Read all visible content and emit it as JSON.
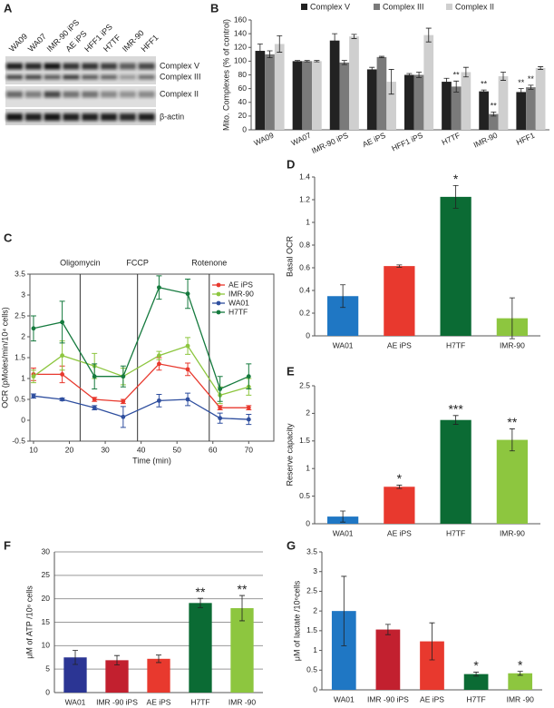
{
  "blot": {
    "panel": "A",
    "lanes": [
      "WA09",
      "WA07",
      "IMR-90 iPS",
      "AE iPS",
      "HFF1 iPS",
      "H7TF",
      "IMR-90",
      "HFF1"
    ],
    "bands": [
      "Complex V",
      "Complex III",
      "Complex II",
      "β-actin"
    ]
  },
  "chart_data": [
    {
      "type": "bar",
      "panel": "B",
      "ylabel": "Mito. Complexes (% of control)",
      "categories": [
        "WA09",
        "WA07",
        "IMR-90 iPS",
        "AE iPS",
        "HFF1 iPS",
        "H7TF",
        "IMR-90",
        "HFF1"
      ],
      "series": [
        {
          "name": "Complex V",
          "color": "#222222",
          "values": [
            115,
            100,
            130,
            88,
            80,
            70,
            56,
            55
          ],
          "errors": [
            10,
            1,
            10,
            3,
            2,
            5,
            2,
            5
          ],
          "significance": [
            null,
            null,
            null,
            null,
            null,
            null,
            "**",
            "**"
          ]
        },
        {
          "name": "Complex III",
          "color": "#7a7a7a",
          "values": [
            110,
            100,
            98,
            106,
            80,
            63,
            23,
            62
          ],
          "errors": [
            5,
            1,
            3,
            1,
            4,
            8,
            3,
            3
          ],
          "significance": [
            null,
            null,
            null,
            null,
            null,
            "**",
            "**",
            "**"
          ]
        },
        {
          "name": "Complex II",
          "color": "#cfcfcf",
          "values": [
            125,
            100,
            136,
            70,
            138,
            84,
            78,
            90
          ],
          "errors": [
            12,
            1,
            3,
            18,
            10,
            7,
            6,
            2
          ],
          "significance": [
            null,
            null,
            null,
            null,
            null,
            null,
            null,
            null
          ]
        }
      ],
      "ylim": [
        0,
        160
      ],
      "yticks": [
        0,
        20,
        40,
        60,
        80,
        100,
        120,
        140,
        160
      ],
      "legend": "top"
    },
    {
      "type": "line",
      "panel": "C",
      "ylabel": "OCR (pMoles/min/10⁴ cells)",
      "xlabel": "Time (min)",
      "x": [
        10,
        18,
        27,
        35,
        45,
        53,
        62,
        70
      ],
      "events": [
        {
          "x": 23,
          "label": "Oligomycin"
        },
        {
          "x": 39,
          "label": "FCCP"
        },
        {
          "x": 59,
          "label": "Rotenone"
        }
      ],
      "series": [
        {
          "name": "AE iPS",
          "color": "#e8392e",
          "values": [
            1.1,
            1.1,
            0.5,
            0.45,
            1.35,
            1.22,
            0.3,
            0.3
          ],
          "errors": [
            0.15,
            0.2,
            0.05,
            0.05,
            0.15,
            0.15,
            0.05,
            0.05
          ]
        },
        {
          "name": "IMR-90",
          "color": "#8dc63f",
          "values": [
            1.05,
            1.55,
            1.3,
            1.05,
            1.55,
            1.78,
            0.6,
            0.8
          ],
          "errors": [
            0.15,
            0.35,
            0.3,
            0.2,
            0.1,
            0.2,
            0.2,
            0.2
          ]
        },
        {
          "name": "WA01",
          "color": "#2f4f9f",
          "values": [
            0.58,
            0.5,
            0.3,
            0.08,
            0.47,
            0.5,
            0.05,
            0.02
          ],
          "errors": [
            0.05,
            0.03,
            0.05,
            0.25,
            0.15,
            0.15,
            0.12,
            0.12
          ]
        },
        {
          "name": "H7TF",
          "color": "#157a3e",
          "values": [
            2.2,
            2.35,
            1.05,
            1.05,
            3.18,
            3.03,
            0.75,
            1.05
          ],
          "errors": [
            0.3,
            0.5,
            0.3,
            0.25,
            0.28,
            0.35,
            0.3,
            0.3
          ]
        }
      ],
      "xlim": [
        9,
        77
      ],
      "xticks": [
        10,
        20,
        30,
        40,
        50,
        60,
        70
      ],
      "ylim": [
        -0.5,
        3.5
      ],
      "yticks": [
        -0.5,
        0,
        0.5,
        1,
        1.5,
        2,
        2.5,
        3,
        3.5
      ],
      "legend": "upper right"
    },
    {
      "type": "bar",
      "panel": "D",
      "ylabel": "Basal OCR",
      "categories": [
        "WA01",
        "AE iPS",
        "H7TF",
        "IMR-90"
      ],
      "values": [
        0.35,
        0.615,
        1.225,
        0.155
      ],
      "errors": [
        0.1,
        0.01,
        0.1,
        0.18
      ],
      "colors": [
        "#1f77c4",
        "#e8392e",
        "#0b6b34",
        "#8dc63f"
      ],
      "significance": [
        null,
        null,
        "*",
        null
      ],
      "ylim": [
        0,
        1.4
      ],
      "yticks": [
        0,
        0.2,
        0.4,
        0.6,
        0.8,
        1,
        1.2,
        1.4
      ]
    },
    {
      "type": "bar",
      "panel": "E",
      "ylabel": "Reserve capacity",
      "categories": [
        "WA01",
        "AE iPS",
        "H7TF",
        "IMR-90"
      ],
      "values": [
        0.13,
        0.67,
        1.88,
        1.52
      ],
      "errors": [
        0.1,
        0.03,
        0.08,
        0.2
      ],
      "colors": [
        "#1f77c4",
        "#e8392e",
        "#0b6b34",
        "#8dc63f"
      ],
      "significance": [
        null,
        "*",
        "***",
        "**"
      ],
      "ylim": [
        0,
        2.5
      ],
      "yticks": [
        0,
        0.5,
        1,
        1.5,
        2,
        2.5
      ]
    },
    {
      "type": "bar",
      "panel": "F",
      "ylabel": "μM of ATP /10⁶ cells",
      "categories": [
        "WA01",
        "IMR -90 iPS",
        "AE iPS",
        "H7TF",
        "IMR -90"
      ],
      "values": [
        7.5,
        6.9,
        7.2,
        19.1,
        18
      ],
      "errors": [
        1.5,
        1,
        0.8,
        1,
        2.7
      ],
      "colors": [
        "#2b3594",
        "#c2202f",
        "#e8392e",
        "#0b6b34",
        "#8dc63f"
      ],
      "significance": [
        null,
        null,
        null,
        "**",
        "**"
      ],
      "ylim": [
        0,
        30
      ],
      "yticks": [
        0,
        5,
        10,
        15,
        20,
        25,
        30
      ],
      "grid": true
    },
    {
      "type": "bar",
      "panel": "G",
      "ylabel": "μM of lactate /10⁶cells",
      "categories": [
        "WA01",
        "IMR -90 iPS",
        "AE iPS",
        "H7TF",
        "IMR -90"
      ],
      "values": [
        2,
        1.53,
        1.23,
        0.4,
        0.42
      ],
      "errors": [
        0.88,
        0.13,
        0.47,
        0.05,
        0.05
      ],
      "colors": [
        "#1f77c4",
        "#c2202f",
        "#e8392e",
        "#0b6b34",
        "#8dc63f"
      ],
      "significance": [
        null,
        null,
        null,
        "*",
        "*"
      ],
      "ylim": [
        0,
        3.5
      ],
      "yticks": [
        0,
        0.5,
        1,
        1.5,
        2,
        2.5,
        3,
        3.5
      ]
    }
  ]
}
